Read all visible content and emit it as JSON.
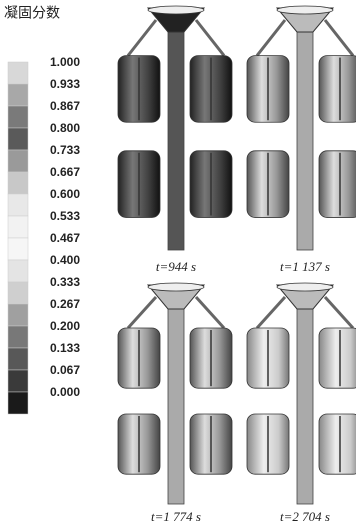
{
  "legend": {
    "title": "凝固分数",
    "items": [
      {
        "label": "1.000",
        "color": "#d8d8d8"
      },
      {
        "label": "0.933",
        "color": "#a8a8a8"
      },
      {
        "label": "0.867",
        "color": "#7a7a7a"
      },
      {
        "label": "0.800",
        "color": "#5a5a5a"
      },
      {
        "label": "0.733",
        "color": "#9a9a9a"
      },
      {
        "label": "0.667",
        "color": "#c8c8c8"
      },
      {
        "label": "0.600",
        "color": "#e8e8e8"
      },
      {
        "label": "0.533",
        "color": "#f2f2f2"
      },
      {
        "label": "0.467",
        "color": "#f6f6f6"
      },
      {
        "label": "0.400",
        "color": "#e4e4e4"
      },
      {
        "label": "0.333",
        "color": "#cfcfcf"
      },
      {
        "label": "0.267",
        "color": "#a0a0a0"
      },
      {
        "label": "0.200",
        "color": "#787878"
      },
      {
        "label": "0.133",
        "color": "#585858"
      },
      {
        "label": "0.067",
        "color": "#3a3a3a"
      },
      {
        "label": "0.000",
        "color": "#1a1a1a"
      }
    ]
  },
  "panels": [
    {
      "caption": "t=944 s"
    },
    {
      "caption": "t=1 137 s"
    },
    {
      "caption": "t=1 774 s"
    },
    {
      "caption": "t=2 704 s"
    }
  ]
}
